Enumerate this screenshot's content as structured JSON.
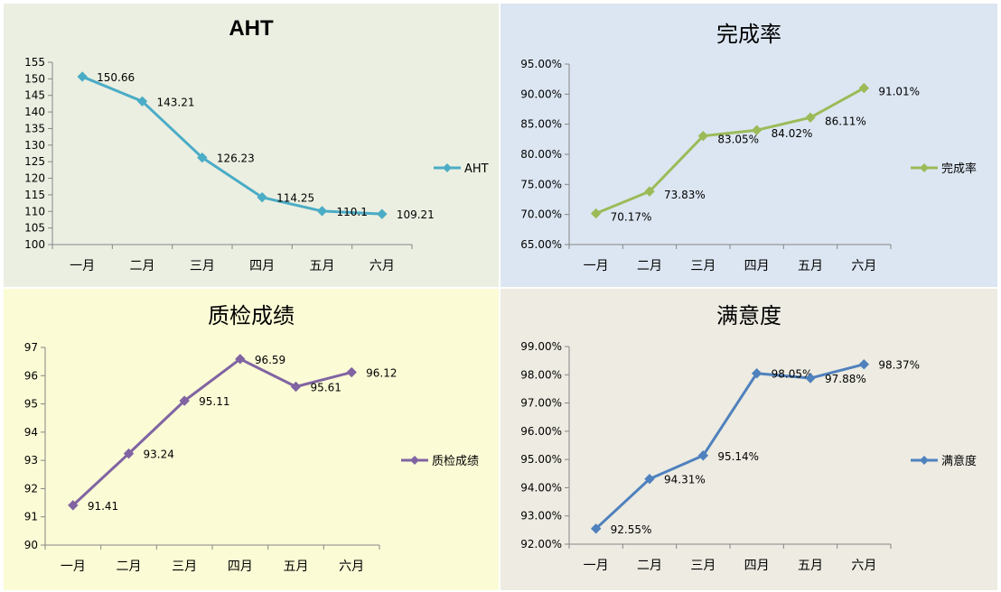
{
  "colors": {
    "panel_bg": [
      "#ebefe1",
      "#dce6f2",
      "#fbfbd6",
      "#edebe2"
    ],
    "series": [
      "#4bacc6",
      "#9bbb59",
      "#8064a2",
      "#4f81bd"
    ]
  },
  "chart_data": [
    {
      "type": "line",
      "title": "AHT",
      "categories": [
        "一月",
        "二月",
        "三月",
        "四月",
        "五月",
        "六月"
      ],
      "series": [
        {
          "name": "AHT",
          "values": [
            150.66,
            143.21,
            126.23,
            114.25,
            110.1,
            109.21
          ]
        }
      ],
      "data_labels": [
        "150.66",
        "143.21",
        "126.23",
        "114.25",
        "110.1",
        "109.21"
      ],
      "ylim": [
        100,
        155
      ],
      "yticks": [
        "100",
        "105",
        "110",
        "115",
        "120",
        "125",
        "130",
        "135",
        "140",
        "145",
        "150",
        "155"
      ],
      "legend": "right",
      "grid": false
    },
    {
      "type": "line",
      "title": "完成率",
      "categories": [
        "一月",
        "二月",
        "三月",
        "四月",
        "五月",
        "六月"
      ],
      "series": [
        {
          "name": "完成率",
          "values": [
            70.17,
            73.83,
            83.05,
            84.02,
            86.11,
            91.01
          ]
        }
      ],
      "data_labels": [
        "70.17%",
        "73.83%",
        "83.05%",
        "84.02%",
        "86.11%",
        "91.01%"
      ],
      "ylim": [
        65,
        95
      ],
      "yticks": [
        "65.00%",
        "70.00%",
        "75.00%",
        "80.00%",
        "85.00%",
        "90.00%",
        "95.00%"
      ],
      "legend": "right",
      "grid": false
    },
    {
      "type": "line",
      "title": "质检成绩",
      "categories": [
        "一月",
        "二月",
        "三月",
        "四月",
        "五月",
        "六月"
      ],
      "series": [
        {
          "name": "质检成绩",
          "values": [
            91.41,
            93.24,
            95.11,
            96.59,
            95.61,
            96.12
          ]
        }
      ],
      "data_labels": [
        "91.41",
        "93.24",
        "95.11",
        "96.59",
        "95.61",
        "96.12"
      ],
      "ylim": [
        90,
        97
      ],
      "yticks": [
        "90",
        "91",
        "92",
        "93",
        "94",
        "95",
        "96",
        "97"
      ],
      "legend": "right",
      "grid": false
    },
    {
      "type": "line",
      "title": "满意度",
      "categories": [
        "一月",
        "二月",
        "三月",
        "四月",
        "五月",
        "六月"
      ],
      "series": [
        {
          "name": "满意度",
          "values": [
            92.55,
            94.31,
            95.14,
            98.05,
            97.88,
            98.37
          ]
        }
      ],
      "data_labels": [
        "92.55%",
        "94.31%",
        "95.14%",
        "98.05%",
        "97.88%",
        "98.37%"
      ],
      "ylim": [
        92,
        99
      ],
      "yticks": [
        "92.00%",
        "93.00%",
        "94.00%",
        "95.00%",
        "96.00%",
        "97.00%",
        "98.00%",
        "99.00%"
      ],
      "legend": "right",
      "grid": false
    }
  ]
}
